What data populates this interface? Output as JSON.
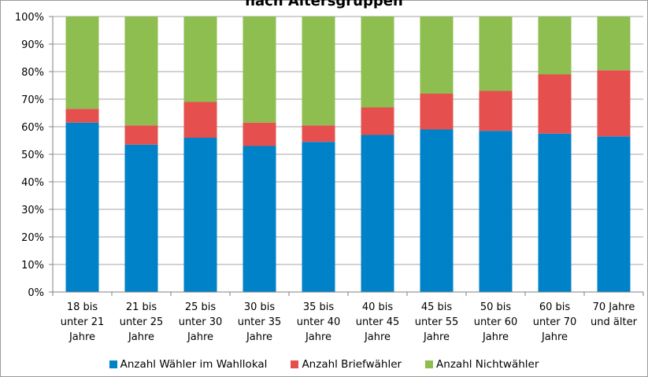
{
  "chart_data": {
    "type": "bar",
    "stacked": true,
    "title": "nach Altersgruppen",
    "categories": [
      [
        "18 bis",
        "unter 21",
        "Jahre"
      ],
      [
        "21 bis",
        "unter 25",
        "Jahre"
      ],
      [
        "25 bis",
        "unter 30",
        "Jahre"
      ],
      [
        "30 bis",
        "unter 35",
        "Jahre"
      ],
      [
        "35 bis",
        "unter 40",
        "Jahre"
      ],
      [
        "40 bis",
        "unter 45",
        "Jahre"
      ],
      [
        "45 bis",
        "unter 55",
        "Jahre"
      ],
      [
        "50 bis",
        "unter 60",
        "Jahre"
      ],
      [
        "60 bis",
        "unter 70",
        "Jahre"
      ],
      [
        "70 Jahre",
        "und älter"
      ]
    ],
    "series": [
      {
        "name": "Anzahl Wähler im Wahllokal",
        "color": "#0082C8",
        "values": [
          61.5,
          53.5,
          56,
          53,
          54.5,
          57,
          59,
          58.5,
          57.5,
          56.5
        ]
      },
      {
        "name": "Anzahl Briefwähler",
        "color": "#E5504F",
        "values": [
          5,
          7,
          13,
          8.5,
          6,
          10,
          13,
          14.5,
          21.5,
          24
        ]
      },
      {
        "name": "Anzahl Nichtwähler",
        "color": "#8DBE4F",
        "values": [
          33.5,
          39.5,
          31,
          38.5,
          39.5,
          33,
          28,
          27,
          21,
          19.5
        ]
      }
    ],
    "ylim": [
      0,
      100
    ],
    "yticks": [
      "0%",
      "10%",
      "20%",
      "30%",
      "40%",
      "50%",
      "60%",
      "70%",
      "80%",
      "90%",
      "100%"
    ],
    "grid": true,
    "legend_position": "bottom"
  }
}
